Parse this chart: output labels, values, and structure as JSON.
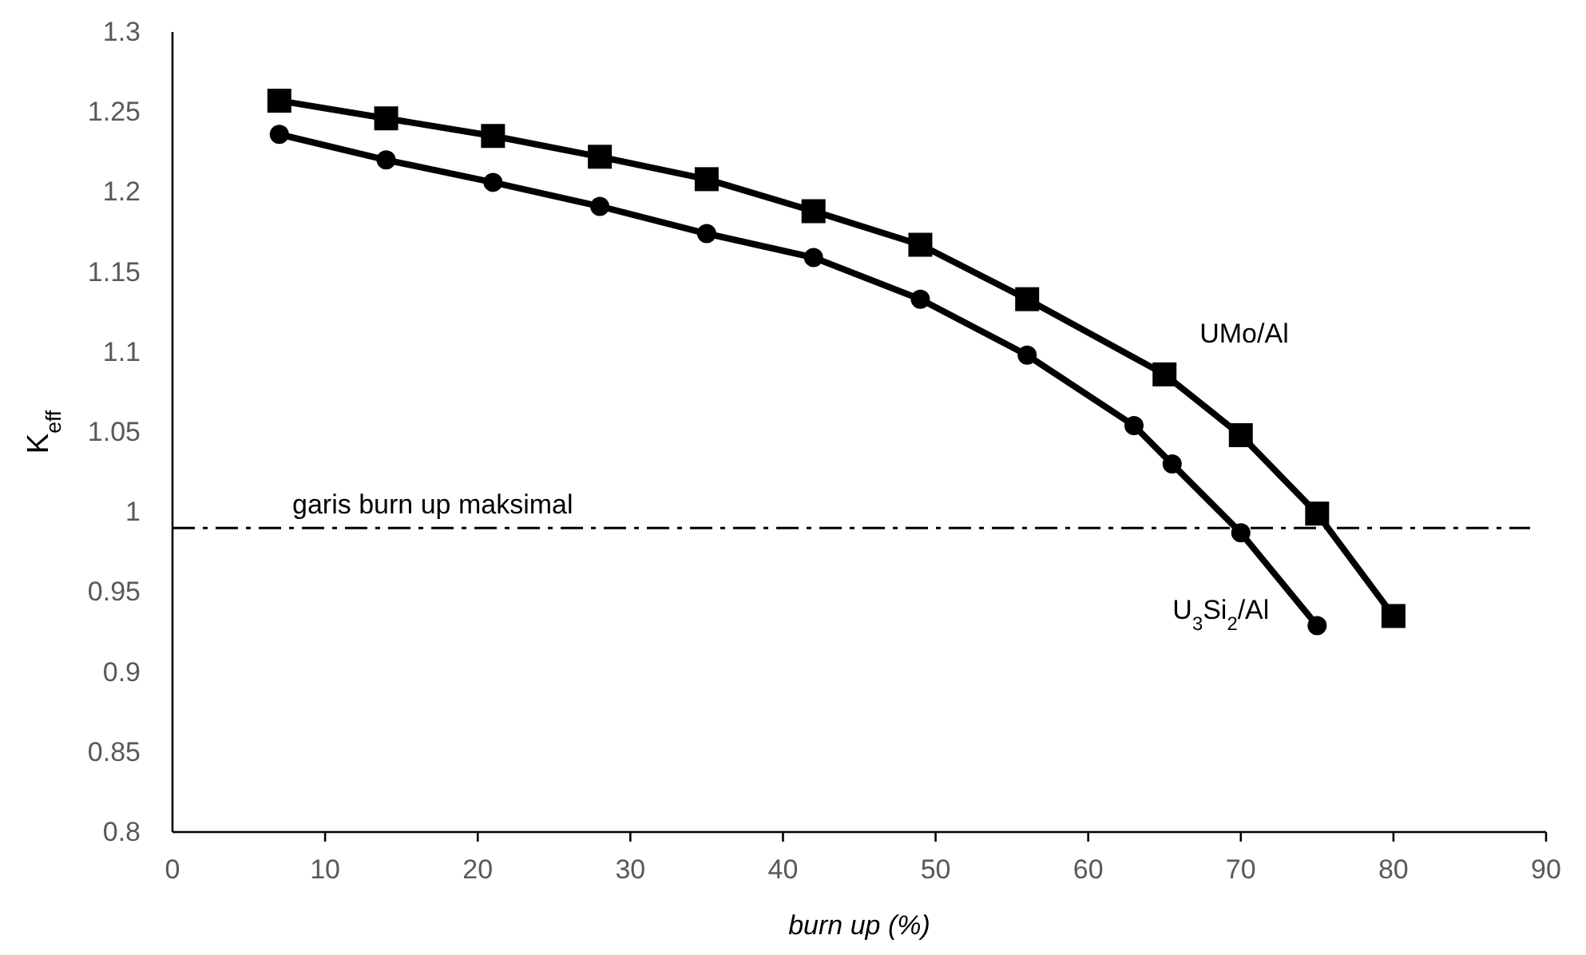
{
  "chart_data": {
    "type": "line",
    "xlabel": "burn up (%)",
    "ylabel": "K$_{eff}$",
    "xlim": [
      0,
      90
    ],
    "xticks": [
      0,
      10,
      20,
      30,
      40,
      50,
      60,
      70,
      80,
      90
    ],
    "ylim": [
      0.8,
      1.3
    ],
    "yticks": [
      0.8,
      0.85,
      0.9,
      0.95,
      1,
      1.05,
      1.1,
      1.15,
      1.2,
      1.25,
      1.3
    ],
    "grid": false,
    "series": [
      {
        "name": "UMo/Al",
        "color": "#000000",
        "marker": "square",
        "x": [
          7,
          14,
          21,
          28,
          35,
          42,
          49,
          56,
          65,
          70,
          75,
          80
        ],
        "values": [
          1.257,
          1.246,
          1.235,
          1.222,
          1.208,
          1.188,
          1.167,
          1.133,
          1.086,
          1.048,
          0.999,
          0.935
        ]
      },
      {
        "name": "U$_{3}$Si$_{2}$/Al",
        "color": "#000000",
        "marker": "circle",
        "x": [
          7,
          14,
          21,
          28,
          35,
          42,
          49,
          56,
          63,
          65.5,
          70,
          75
        ],
        "values": [
          1.236,
          1.22,
          1.206,
          1.191,
          1.174,
          1.159,
          1.133,
          1.098,
          1.054,
          1.03,
          0.987,
          0.929
        ]
      }
    ],
    "ref_lines": [
      {
        "axis": "y",
        "value": 0.99,
        "label": "garis burn up maksimal",
        "color": "#000000",
        "line_style": "dashdot"
      }
    ]
  }
}
